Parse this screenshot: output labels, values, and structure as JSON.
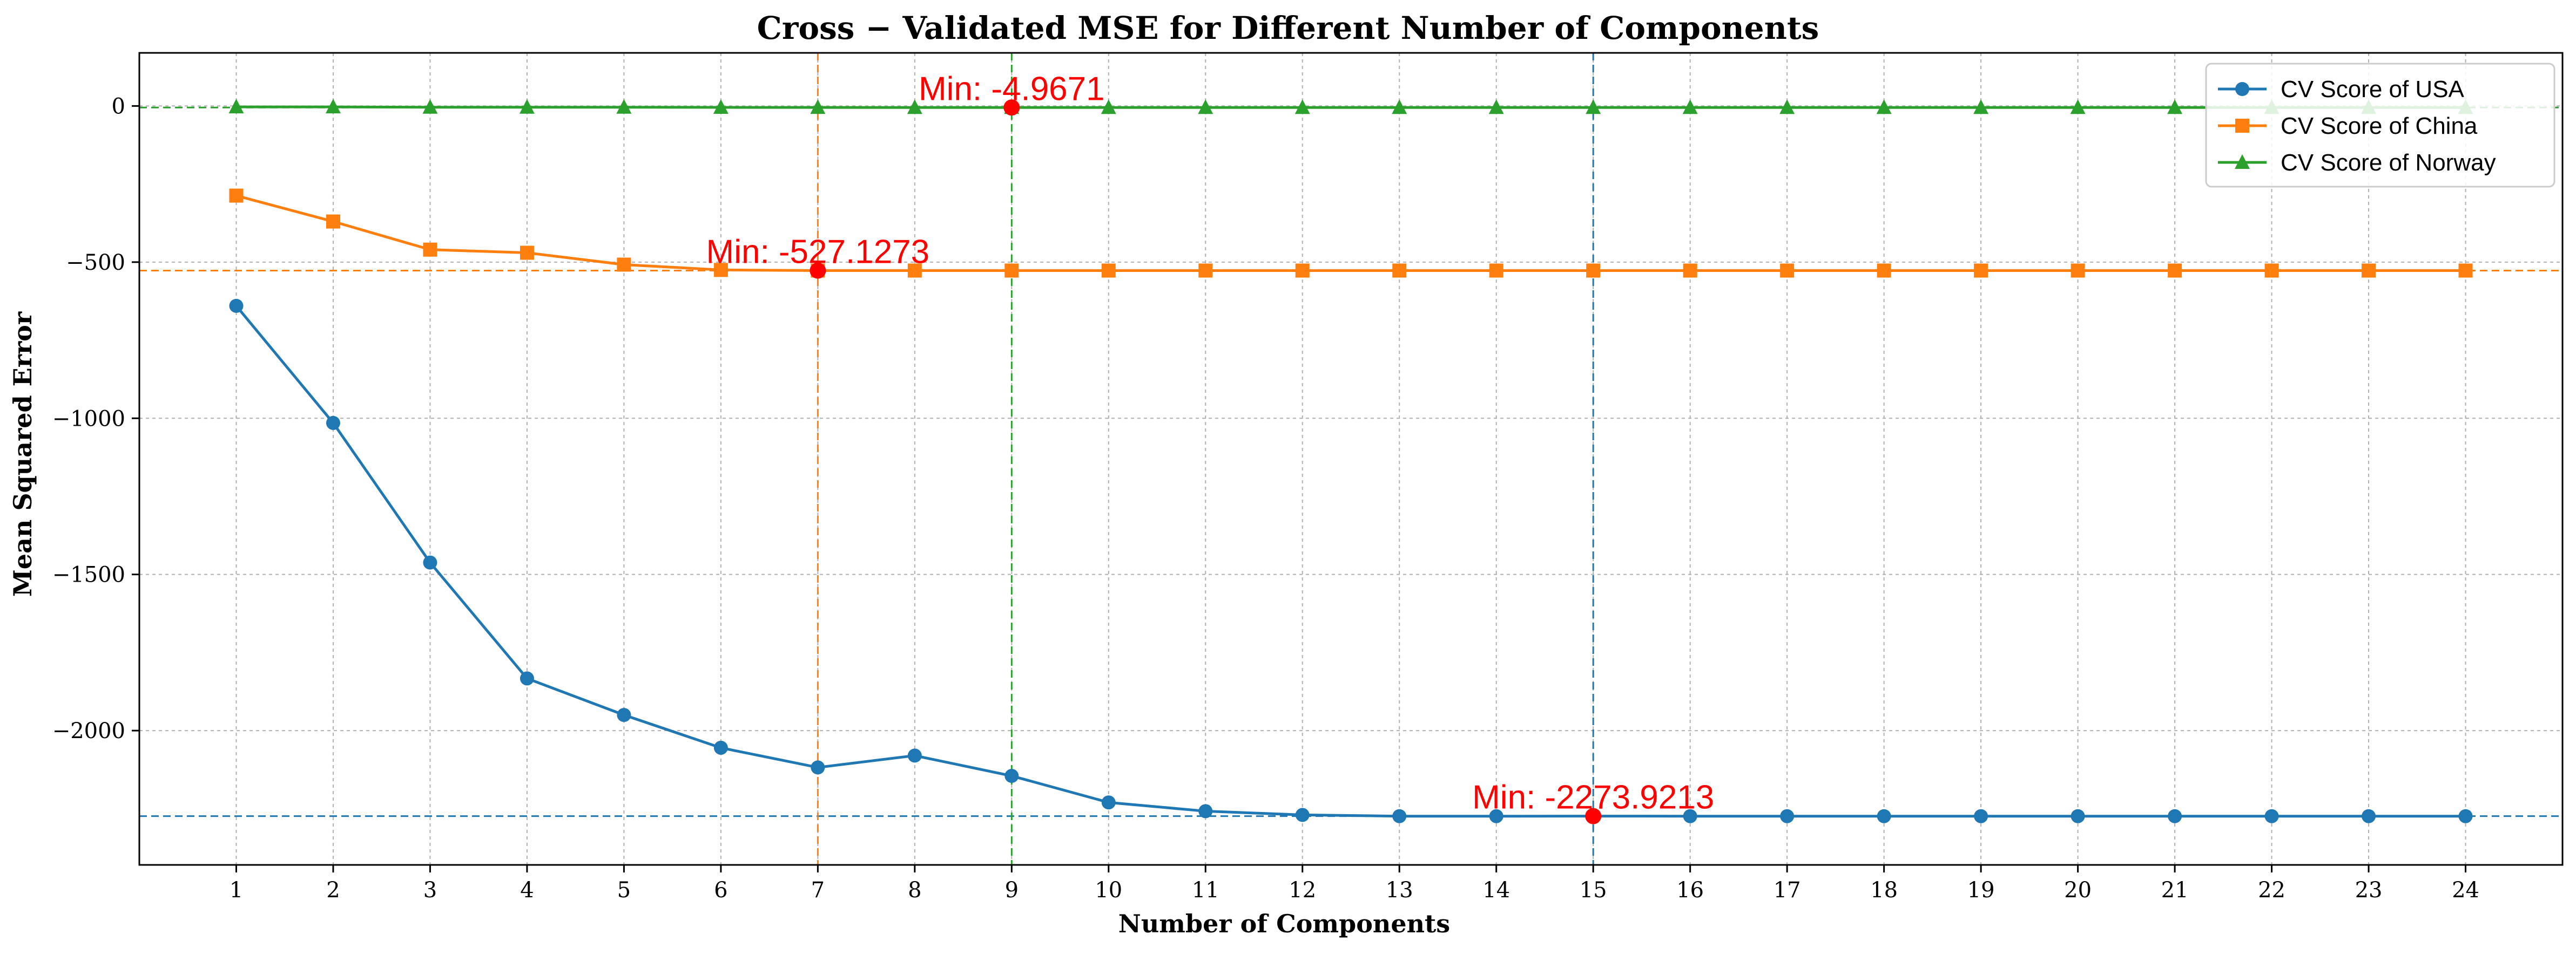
{
  "chart_data": {
    "type": "line",
    "title": "Cross − Validated MSE for Different Number of Components",
    "xlabel": "Number of Components",
    "ylabel": "Mean Squared Error",
    "xlim": [
      0,
      25
    ],
    "ylim": [
      -2430,
      170
    ],
    "grid": true,
    "legend_position": "top-right",
    "x": [
      1,
      2,
      3,
      4,
      5,
      6,
      7,
      8,
      9,
      10,
      11,
      12,
      13,
      14,
      15,
      16,
      17,
      18,
      19,
      20,
      21,
      22,
      23,
      24
    ],
    "x_ticks": [
      "1",
      "2",
      "3",
      "4",
      "5",
      "6",
      "7",
      "8",
      "9",
      "10",
      "11",
      "12",
      "13",
      "14",
      "15",
      "16",
      "17",
      "18",
      "19",
      "20",
      "21",
      "22",
      "23",
      "24"
    ],
    "y_ticks": [
      0,
      -500,
      -1000,
      -1500,
      -2000
    ],
    "y_tick_labels": [
      "0",
      "−500",
      "−1000",
      "−1500",
      "−2000"
    ],
    "series": [
      {
        "name": "CV Score of USA",
        "color": "#1f77b4",
        "marker": "circle",
        "values": [
          -640,
          -1015,
          -1462,
          -1833,
          -1950,
          -2055,
          -2118,
          -2080,
          -2145,
          -2230,
          -2258,
          -2270,
          -2274,
          -2274,
          -2273.9213,
          -2274,
          -2274,
          -2274,
          -2274,
          -2274,
          -2274,
          -2274,
          -2274,
          -2274
        ],
        "min": {
          "x": 15,
          "y": -2273.9213,
          "label": "Min: -2273.9213"
        }
      },
      {
        "name": "CV Score of China",
        "color": "#ff7f0e",
        "marker": "square",
        "values": [
          -287,
          -370,
          -460,
          -470,
          -508,
          -525,
          -527.1273,
          -527,
          -527,
          -527,
          -527,
          -527,
          -527,
          -527,
          -527,
          -527,
          -527,
          -527,
          -527,
          -527,
          -527,
          -527,
          -527,
          -527
        ],
        "min": {
          "x": 7,
          "y": -527.1273,
          "label": "Min: -527.1273"
        }
      },
      {
        "name": "CV Score of Norway",
        "color": "#2ca02c",
        "marker": "triangle",
        "values": [
          -3,
          -3,
          -4,
          -4,
          -4,
          -4.5,
          -4.8,
          -4.9,
          -4.9671,
          -4.9,
          -4.9,
          -4.9,
          -4.9,
          -4.9,
          -4.9,
          -4.9,
          -4.9,
          -4.9,
          -4.9,
          -4.9,
          -4.9,
          -4.9,
          -4.9,
          -4.9
        ],
        "min": {
          "x": 9,
          "y": -4.9671,
          "label": "Min: -4.9671"
        }
      }
    ],
    "min_marker_color": "#ff0000"
  }
}
